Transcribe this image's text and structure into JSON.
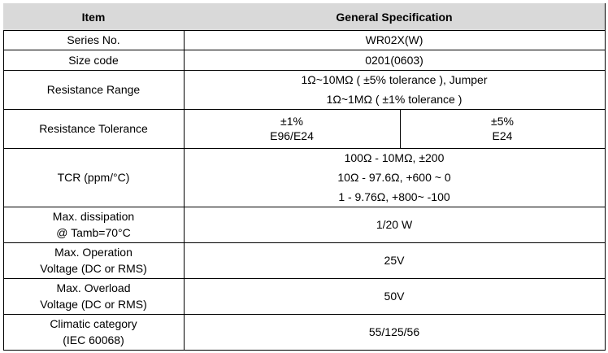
{
  "table": {
    "header": [
      "Item",
      "General Specification"
    ],
    "rows": [
      {
        "label": [
          "Series No."
        ],
        "cells": [
          [
            "WR02X(W)"
          ]
        ]
      },
      {
        "label": [
          "Size code"
        ],
        "cells": [
          [
            "0201(0603)"
          ]
        ]
      },
      {
        "label": [
          "Resistance Range"
        ],
        "cells": [
          [
            "1Ω~10MΩ ( ±5% tolerance ), Jumper",
            "1Ω~1MΩ ( ±1% tolerance )"
          ]
        ]
      },
      {
        "label": [
          "Resistance Tolerance"
        ],
        "cells": [
          [
            "±1%",
            "E96/E24"
          ],
          [
            "±5%",
            "E24"
          ]
        ]
      },
      {
        "label": [
          "TCR (ppm/°C)"
        ],
        "cells": [
          [
            "100Ω - 10MΩ, ±200",
            "10Ω - 97.6Ω, +600 ~ 0",
            "1 - 9.76Ω, +800~ -100"
          ]
        ]
      },
      {
        "label": [
          "Max. dissipation",
          "@ Tamb=70°C"
        ],
        "cells": [
          [
            "1/20 W"
          ]
        ]
      },
      {
        "label": [
          "Max. Operation",
          "Voltage (DC or RMS)"
        ],
        "cells": [
          [
            "25V"
          ]
        ]
      },
      {
        "label": [
          "Max. Overload",
          "Voltage (DC or RMS)"
        ],
        "cells": [
          [
            "50V"
          ]
        ]
      },
      {
        "label": [
          "Climatic category",
          "(IEC 60068)"
        ],
        "cells": [
          [
            "55/125/56"
          ]
        ]
      }
    ]
  }
}
